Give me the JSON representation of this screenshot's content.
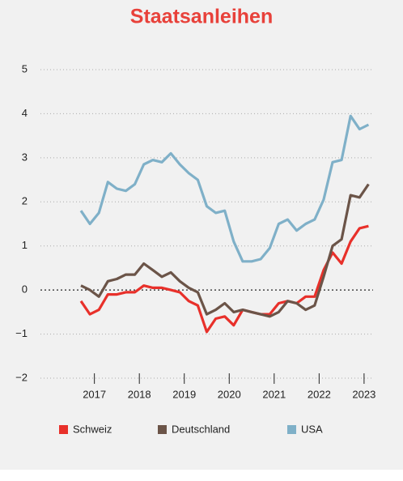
{
  "chart_data": {
    "type": "line",
    "title": "Staatsanleihen",
    "x": [
      2016.7,
      2016.9,
      2017.1,
      2017.3,
      2017.5,
      2017.7,
      2017.9,
      2018.1,
      2018.3,
      2018.5,
      2018.7,
      2018.9,
      2019.1,
      2019.3,
      2019.5,
      2019.7,
      2019.9,
      2020.1,
      2020.3,
      2020.5,
      2020.7,
      2020.9,
      2021.1,
      2021.3,
      2021.5,
      2021.7,
      2021.9,
      2022.1,
      2022.3,
      2022.5,
      2022.7,
      2022.9,
      2023.1
    ],
    "series": [
      {
        "name": "Schweiz",
        "color": "#e8302a",
        "values": [
          -0.25,
          -0.55,
          -0.45,
          -0.1,
          -0.1,
          -0.05,
          -0.05,
          0.1,
          0.05,
          0.05,
          0.0,
          -0.05,
          -0.25,
          -0.35,
          -0.95,
          -0.65,
          -0.6,
          -0.8,
          -0.45,
          -0.5,
          -0.55,
          -0.55,
          -0.3,
          -0.25,
          -0.3,
          -0.15,
          -0.15,
          0.45,
          0.85,
          0.6,
          1.1,
          1.4,
          1.45
        ]
      },
      {
        "name": "Deutschland",
        "color": "#6b5448",
        "values": [
          0.1,
          0.0,
          -0.15,
          0.2,
          0.25,
          0.35,
          0.35,
          0.6,
          0.45,
          0.3,
          0.4,
          0.2,
          0.05,
          -0.05,
          -0.55,
          -0.45,
          -0.3,
          -0.5,
          -0.45,
          -0.5,
          -0.55,
          -0.6,
          -0.5,
          -0.25,
          -0.3,
          -0.45,
          -0.35,
          0.3,
          1.0,
          1.15,
          2.15,
          2.1,
          2.4
        ]
      },
      {
        "name": "USA",
        "color": "#7fb0c8",
        "values": [
          1.8,
          1.5,
          1.75,
          2.45,
          2.3,
          2.25,
          2.4,
          2.85,
          2.95,
          2.9,
          3.1,
          2.85,
          2.65,
          2.5,
          1.9,
          1.75,
          1.8,
          1.1,
          0.65,
          0.65,
          0.7,
          0.95,
          1.5,
          1.6,
          1.35,
          1.5,
          1.6,
          2.05,
          2.9,
          2.95,
          3.95,
          3.65,
          3.75
        ]
      }
    ],
    "xlim": [
      2015.8,
      2023.2
    ],
    "xticks": [
      2017,
      2018,
      2019,
      2020,
      2021,
      2022,
      2023
    ],
    "ylim": [
      -2,
      5
    ],
    "yticks": [
      {
        "value": -2,
        "label": "−2"
      },
      {
        "value": -1,
        "label": "−1"
      },
      0,
      1,
      2,
      3,
      4,
      5
    ],
    "grid": true
  }
}
